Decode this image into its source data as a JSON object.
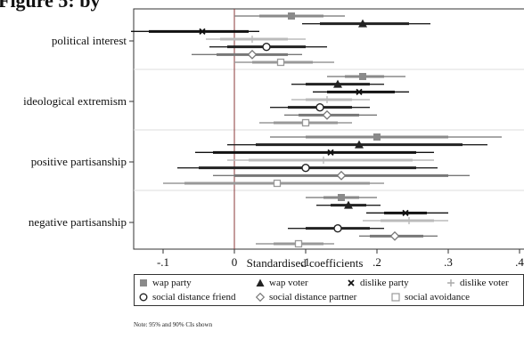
{
  "title_fragment": "Figure 5: by",
  "chart_data": {
    "type": "coefficient_plot",
    "xlabel": "Standardised coefficients",
    "xlim": [
      -0.15,
      0.4
    ],
    "xticks": [
      -0.1,
      0,
      0.1,
      0.2,
      0.3,
      0.4
    ],
    "xtick_labels": [
      "-.1",
      "0",
      ".1",
      ".2",
      ".3",
      ".4"
    ],
    "categories": [
      "political interest",
      "ideological extremism",
      "positive partisanship",
      "negative partisanship"
    ],
    "series": [
      {
        "name": "wap party",
        "marker": "square-filled",
        "color": "#8a8a8a",
        "points": [
          {
            "est": 0.08,
            "ci90": [
              0.035,
              0.125
            ],
            "ci95": [
              0.0,
              0.155
            ]
          },
          {
            "est": 0.18,
            "ci90": [
              0.155,
              0.21
            ],
            "ci95": [
              0.13,
              0.24
            ]
          },
          {
            "est": 0.2,
            "ci90": [
              0.1,
              0.3
            ],
            "ci95": [
              0.05,
              0.375
            ]
          },
          {
            "est": 0.15,
            "ci90": [
              0.125,
              0.175
            ],
            "ci95": [
              0.1,
              0.2
            ]
          }
        ]
      },
      {
        "name": "wap voter",
        "marker": "triangle-filled",
        "color": "#222222",
        "points": [
          {
            "est": 0.18,
            "ci90": [
              0.12,
              0.245
            ],
            "ci95": [
              0.095,
              0.275
            ]
          },
          {
            "est": 0.145,
            "ci90": [
              0.1,
              0.19
            ],
            "ci95": [
              0.08,
              0.21
            ]
          },
          {
            "est": 0.175,
            "ci90": [
              0.03,
              0.32
            ],
            "ci95": [
              -0.01,
              0.355
            ]
          },
          {
            "est": 0.16,
            "ci90": [
              0.135,
              0.185
            ],
            "ci95": [
              0.115,
              0.205
            ]
          }
        ]
      },
      {
        "name": "dislike party",
        "marker": "x",
        "color": "#111111",
        "points": [
          {
            "est": -0.045,
            "ci90": [
              -0.12,
              0.02
            ],
            "ci95": [
              -0.145,
              0.035
            ]
          },
          {
            "est": 0.175,
            "ci90": [
              0.13,
              0.225
            ],
            "ci95": [
              0.11,
              0.245
            ]
          },
          {
            "est": 0.135,
            "ci90": [
              -0.03,
              0.255
            ],
            "ci95": [
              -0.055,
              0.28
            ]
          },
          {
            "est": 0.24,
            "ci90": [
              0.21,
              0.27
            ],
            "ci95": [
              0.185,
              0.3
            ]
          }
        ]
      },
      {
        "name": "dislike voter",
        "marker": "plus",
        "color": "#bbbbbb",
        "points": [
          {
            "est": 0.025,
            "ci90": [
              -0.02,
              0.075
            ],
            "ci95": [
              -0.04,
              0.1
            ]
          },
          {
            "est": 0.13,
            "ci90": [
              0.1,
              0.165
            ],
            "ci95": [
              0.08,
              0.19
            ]
          },
          {
            "est": 0.125,
            "ci90": [
              0.02,
              0.25
            ],
            "ci95": [
              -0.01,
              0.28
            ]
          },
          {
            "est": 0.245,
            "ci90": [
              0.205,
              0.28
            ],
            "ci95": [
              0.18,
              0.3
            ]
          }
        ]
      },
      {
        "name": "social distance friend",
        "marker": "circle-hollow",
        "color": "#222222",
        "points": [
          {
            "est": 0.045,
            "ci90": [
              -0.01,
              0.1
            ],
            "ci95": [
              -0.035,
              0.13
            ]
          },
          {
            "est": 0.12,
            "ci90": [
              0.075,
              0.165
            ],
            "ci95": [
              0.05,
              0.19
            ]
          },
          {
            "est": 0.1,
            "ci90": [
              -0.05,
              0.255
            ],
            "ci95": [
              -0.08,
              0.285
            ]
          },
          {
            "est": 0.145,
            "ci90": [
              0.1,
              0.19
            ],
            "ci95": [
              0.075,
              0.21
            ]
          }
        ]
      },
      {
        "name": "social distance partner",
        "marker": "diamond-hollow",
        "color": "#777777",
        "points": [
          {
            "est": 0.025,
            "ci90": [
              -0.025,
              0.075
            ],
            "ci95": [
              -0.06,
              0.095
            ]
          },
          {
            "est": 0.13,
            "ci90": [
              0.09,
              0.175
            ],
            "ci95": [
              0.07,
              0.2
            ]
          },
          {
            "est": 0.15,
            "ci90": [
              0.0,
              0.3
            ],
            "ci95": [
              -0.03,
              0.33
            ]
          },
          {
            "est": 0.225,
            "ci90": [
              0.19,
              0.265
            ],
            "ci95": [
              0.175,
              0.285
            ]
          }
        ]
      },
      {
        "name": "social avoidance",
        "marker": "square-hollow",
        "color": "#999999",
        "points": [
          {
            "est": 0.065,
            "ci90": [
              0.025,
              0.11
            ],
            "ci95": [
              0.0,
              0.14
            ]
          },
          {
            "est": 0.1,
            "ci90": [
              0.055,
              0.145
            ],
            "ci95": [
              0.035,
              0.165
            ]
          },
          {
            "est": 0.06,
            "ci90": [
              -0.07,
              0.19
            ],
            "ci95": [
              -0.1,
              0.21
            ]
          },
          {
            "est": 0.09,
            "ci90": [
              0.055,
              0.125
            ],
            "ci95": [
              0.03,
              0.14
            ]
          }
        ]
      }
    ],
    "grid": true,
    "legend_position": "bottom",
    "note": "Note: 95% and 90% CIs shown"
  },
  "legend_rows": [
    [
      "wap party",
      "wap voter",
      "dislike party",
      "dislike voter"
    ],
    [
      "social distance friend",
      "social distance partner",
      "social avoidance"
    ]
  ]
}
